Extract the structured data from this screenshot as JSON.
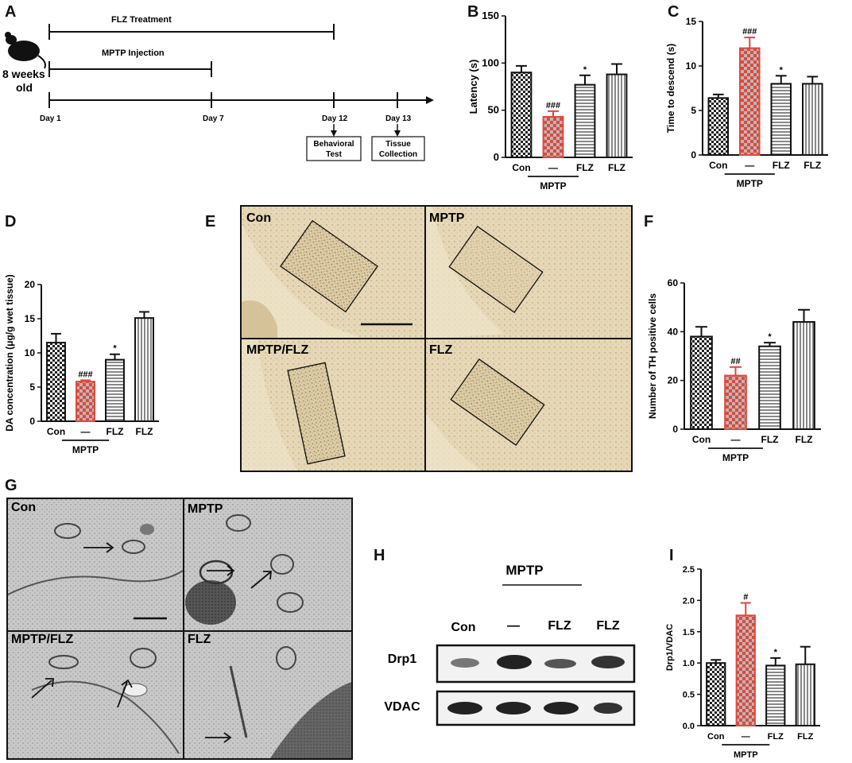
{
  "panel_letters": {
    "A": "A",
    "B": "B",
    "C": "C",
    "D": "D",
    "E": "E",
    "F": "F",
    "G": "G",
    "H": "H",
    "I": "I"
  },
  "timeline": {
    "mouse_label_1": "8 weeks",
    "mouse_label_2": "old",
    "flz_treatment": "FLZ Treatment",
    "mptp_injection": "MPTP Injection",
    "days": [
      "Day 1",
      "Day 7",
      "Day 12",
      "Day 13"
    ],
    "box1_line1": "Behavioral",
    "box1_line2": "Test",
    "box2_line1": "Tissue",
    "box2_line2": "Collection"
  },
  "group_labels": {
    "con": "Con",
    "dash": "—",
    "flz": "FLZ",
    "mptp": "MPTP"
  },
  "colors": {
    "red": "#e0483c",
    "dark": "#222222",
    "bg_tissue": "#e4d6b2"
  },
  "chart_data": [
    {
      "id": "B",
      "type": "bar",
      "ylabel": "Latency (s)",
      "ylim": [
        0,
        150
      ],
      "yticks": [
        0,
        50,
        100,
        150
      ],
      "categories": [
        "Con",
        "—",
        "FLZ",
        "FLZ"
      ],
      "values": [
        90,
        43,
        77,
        88
      ],
      "errors": [
        7,
        6,
        10,
        11
      ],
      "annotations": [
        "",
        "###",
        "*",
        ""
      ],
      "group_label": "MPTP"
    },
    {
      "id": "C",
      "type": "bar",
      "ylabel": "Time to descend (s)",
      "ylim": [
        0,
        15
      ],
      "yticks": [
        0,
        5,
        10,
        15
      ],
      "categories": [
        "Con",
        "—",
        "FLZ",
        "FLZ"
      ],
      "values": [
        6.4,
        12.0,
        8.0,
        8.0
      ],
      "errors": [
        0.4,
        1.2,
        0.9,
        0.8
      ],
      "annotations": [
        "",
        "###",
        "*",
        ""
      ],
      "group_label": "MPTP"
    },
    {
      "id": "D",
      "type": "bar",
      "ylabel": "DA concentration (μg/g wet tissue)",
      "ylim": [
        0,
        20
      ],
      "yticks": [
        0,
        5,
        10,
        15,
        20
      ],
      "categories": [
        "Con",
        "—",
        "FLZ",
        "FLZ"
      ],
      "values": [
        11.5,
        5.8,
        9.0,
        15.1
      ],
      "errors": [
        1.3,
        0.2,
        0.8,
        0.9
      ],
      "annotations": [
        "",
        "###",
        "*",
        ""
      ],
      "group_label": "MPTP"
    },
    {
      "id": "F",
      "type": "bar",
      "ylabel": "Number of TH positive cells",
      "ylim": [
        0,
        60
      ],
      "yticks": [
        0,
        20,
        40,
        60
      ],
      "categories": [
        "Con",
        "—",
        "FLZ",
        "FLZ"
      ],
      "values": [
        38,
        22,
        34,
        44
      ],
      "errors": [
        4,
        3.5,
        1.5,
        5
      ],
      "annotations": [
        "",
        "##",
        "*",
        ""
      ],
      "group_label": "MPTP"
    },
    {
      "id": "I",
      "type": "bar",
      "ylabel": "Drp1/VDAC",
      "ylim": [
        0,
        2.5
      ],
      "yticks": [
        0.0,
        0.5,
        1.0,
        1.5,
        2.0,
        2.5
      ],
      "categories": [
        "Con",
        "—",
        "FLZ",
        "FLZ"
      ],
      "values": [
        1.0,
        1.76,
        0.96,
        0.98
      ],
      "errors": [
        0.05,
        0.2,
        0.12,
        0.28
      ],
      "annotations": [
        "",
        "#",
        "*",
        ""
      ],
      "group_label": "MPTP"
    }
  ],
  "panel_E": {
    "quadrants": [
      "Con",
      "MPTP",
      "MPTP/FLZ",
      "FLZ"
    ]
  },
  "panel_G": {
    "quadrants": [
      "Con",
      "MPTP",
      "MPTP/FLZ",
      "FLZ"
    ]
  },
  "panel_H": {
    "mptp": "MPTP",
    "lanes": [
      "Con",
      "—",
      "FLZ",
      "FLZ"
    ],
    "rows": [
      "Drp1",
      "VDAC"
    ]
  }
}
